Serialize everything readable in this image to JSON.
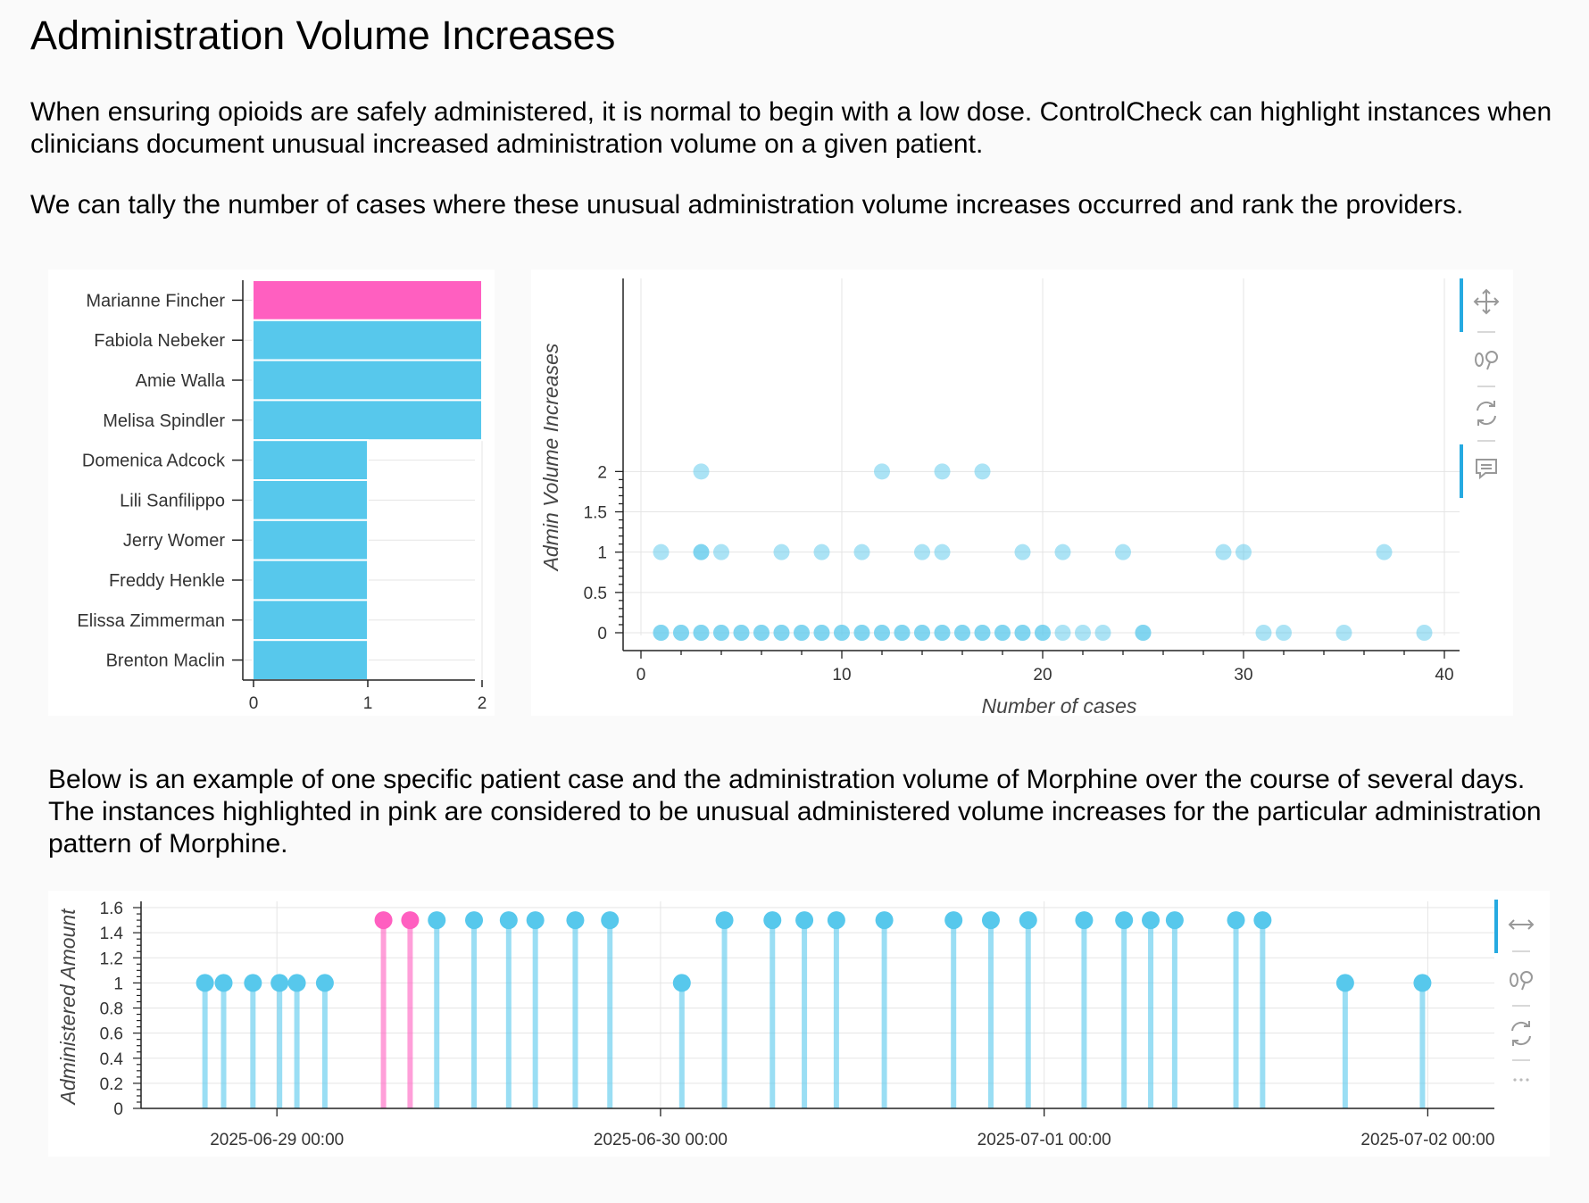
{
  "page": {
    "title": "Administration Volume Increases",
    "paragraph1": "When ensuring opioids are safely administered, it is normal to begin with a low dose. ControlCheck can highlight instances when clinicians document unusual increased administration volume on a given patient.",
    "paragraph2": "We can tally the number of cases where these unusual administration volume increases occurred and rank the providers.",
    "paragraph3": "Below is an example of one specific patient case and the administration volume of Morphine over the course of several days. The instances highlighted in pink are considered to be unusual administered volume increases for the particular administration pattern of Morphine."
  },
  "colors": {
    "blue": "#57c8ec",
    "pink": "#ff5fc0",
    "grid": "#e5e5e5",
    "axis": "#222222",
    "toolbar_active": "#26aae1",
    "toolbar_icon": "#999999"
  },
  "toolbar_icons": {
    "scatter": [
      "pan-icon",
      "wheel-zoom-icon",
      "reset-icon",
      "hover-icon"
    ],
    "stem": [
      "x-pan-icon",
      "wheel-zoom-icon",
      "reset-icon",
      "more-icon"
    ]
  },
  "chart_data": [
    {
      "type": "bar",
      "orientation": "horizontal",
      "categories": [
        "Marianne Fincher",
        "Fabiola Nebeker",
        "Amie Walla",
        "Melisa Spindler",
        "Domenica Adcock",
        "Lili Sanfilippo",
        "Jerry Womer",
        "Freddy Henkle",
        "Elissa Zimmerman",
        "Brenton Maclin"
      ],
      "values": [
        2,
        2,
        2,
        2,
        1,
        1,
        1,
        1,
        1,
        1
      ],
      "highlight": [
        true,
        false,
        false,
        false,
        false,
        false,
        false,
        false,
        false,
        false
      ],
      "xlim": [
        0,
        2
      ],
      "xticks": [
        0,
        1,
        2
      ],
      "xlabel": "",
      "ylabel": "",
      "grid": true
    },
    {
      "type": "scatter",
      "xlabel": "Number of cases",
      "ylabel": "Admin Volume Increases",
      "xlim": [
        -1,
        41
      ],
      "ylim": [
        -0.1,
        2.1
      ],
      "xticks": [
        0,
        10,
        20,
        30,
        40
      ],
      "yticks": [
        0,
        0.5,
        1,
        1.5,
        2
      ],
      "ytick_labels": [
        "0",
        "0.5",
        "1",
        "1.5",
        "2"
      ],
      "grid": true,
      "series": [
        {
          "points": [
            [
              3,
              2
            ],
            [
              12,
              2
            ],
            [
              15,
              2
            ],
            [
              17,
              2
            ],
            [
              1,
              1
            ],
            [
              3,
              1
            ],
            [
              3,
              1
            ],
            [
              4,
              1
            ],
            [
              7,
              1
            ],
            [
              9,
              1
            ],
            [
              11,
              1
            ],
            [
              14,
              1
            ],
            [
              15,
              1
            ],
            [
              19,
              1
            ],
            [
              21,
              1
            ],
            [
              24,
              1
            ],
            [
              29,
              1
            ],
            [
              30,
              1
            ],
            [
              37,
              1
            ],
            [
              1,
              0
            ],
            [
              1,
              0
            ],
            [
              2,
              0
            ],
            [
              2,
              0
            ],
            [
              3,
              0
            ],
            [
              3,
              0
            ],
            [
              4,
              0
            ],
            [
              4,
              0
            ],
            [
              5,
              0
            ],
            [
              5,
              0
            ],
            [
              6,
              0
            ],
            [
              6,
              0
            ],
            [
              7,
              0
            ],
            [
              7,
              0
            ],
            [
              8,
              0
            ],
            [
              8,
              0
            ],
            [
              9,
              0
            ],
            [
              9,
              0
            ],
            [
              10,
              0
            ],
            [
              10,
              0
            ],
            [
              11,
              0
            ],
            [
              11,
              0
            ],
            [
              12,
              0
            ],
            [
              12,
              0
            ],
            [
              13,
              0
            ],
            [
              13,
              0
            ],
            [
              14,
              0
            ],
            [
              14,
              0
            ],
            [
              15,
              0
            ],
            [
              15,
              0
            ],
            [
              16,
              0
            ],
            [
              16,
              0
            ],
            [
              17,
              0
            ],
            [
              17,
              0
            ],
            [
              18,
              0
            ],
            [
              18,
              0
            ],
            [
              19,
              0
            ],
            [
              19,
              0
            ],
            [
              20,
              0
            ],
            [
              20,
              0
            ],
            [
              21,
              0
            ],
            [
              22,
              0
            ],
            [
              23,
              0
            ],
            [
              25,
              0
            ],
            [
              25,
              0
            ],
            [
              31,
              0
            ],
            [
              32,
              0
            ],
            [
              35,
              0
            ],
            [
              39,
              0
            ]
          ]
        }
      ]
    },
    {
      "type": "stem",
      "xlabel": "",
      "ylabel": "Administered Amount",
      "xlim": [
        "2025-06-28 15:30",
        "2025-07-02 04:10"
      ],
      "ylim": [
        0,
        1.65
      ],
      "xticks": [
        "2025-06-29 00:00",
        "2025-06-30 00:00",
        "2025-07-01 00:00",
        "2025-07-02 00:00"
      ],
      "yticks": [
        0,
        0.2,
        0.4,
        0.6,
        0.8,
        1,
        1.2,
        1.4,
        1.6
      ],
      "ytick_labels": [
        "0",
        "0.2",
        "0.4",
        "0.6",
        "0.8",
        "1",
        "1.2",
        "1.4",
        "1.6"
      ],
      "grid": true,
      "series": [
        {
          "points": [
            {
              "t": "2025-06-28 19:30",
              "v": 1,
              "unusual": false
            },
            {
              "t": "2025-06-28 20:40",
              "v": 1,
              "unusual": false
            },
            {
              "t": "2025-06-28 22:30",
              "v": 1,
              "unusual": false
            },
            {
              "t": "2025-06-29 00:10",
              "v": 1,
              "unusual": false
            },
            {
              "t": "2025-06-29 01:15",
              "v": 1,
              "unusual": false
            },
            {
              "t": "2025-06-29 03:00",
              "v": 1,
              "unusual": false
            },
            {
              "t": "2025-06-29 06:40",
              "v": 1.5,
              "unusual": true
            },
            {
              "t": "2025-06-29 08:20",
              "v": 1.5,
              "unusual": true
            },
            {
              "t": "2025-06-29 10:00",
              "v": 1.5,
              "unusual": false
            },
            {
              "t": "2025-06-29 12:20",
              "v": 1.5,
              "unusual": false
            },
            {
              "t": "2025-06-29 14:30",
              "v": 1.5,
              "unusual": false
            },
            {
              "t": "2025-06-29 16:10",
              "v": 1.5,
              "unusual": false
            },
            {
              "t": "2025-06-29 18:40",
              "v": 1.5,
              "unusual": false
            },
            {
              "t": "2025-06-29 20:50",
              "v": 1.5,
              "unusual": false
            },
            {
              "t": "2025-06-30 01:20",
              "v": 1,
              "unusual": false
            },
            {
              "t": "2025-06-30 04:00",
              "v": 1.5,
              "unusual": false
            },
            {
              "t": "2025-06-30 07:00",
              "v": 1.5,
              "unusual": false
            },
            {
              "t": "2025-06-30 09:00",
              "v": 1.5,
              "unusual": false
            },
            {
              "t": "2025-06-30 11:00",
              "v": 1.5,
              "unusual": false
            },
            {
              "t": "2025-06-30 14:00",
              "v": 1.5,
              "unusual": false
            },
            {
              "t": "2025-06-30 18:20",
              "v": 1.5,
              "unusual": false
            },
            {
              "t": "2025-06-30 20:40",
              "v": 1.5,
              "unusual": false
            },
            {
              "t": "2025-06-30 23:00",
              "v": 1.5,
              "unusual": false
            },
            {
              "t": "2025-07-01 02:30",
              "v": 1.5,
              "unusual": false
            },
            {
              "t": "2025-07-01 05:00",
              "v": 1.5,
              "unusual": false
            },
            {
              "t": "2025-07-01 06:40",
              "v": 1.5,
              "unusual": false
            },
            {
              "t": "2025-07-01 08:10",
              "v": 1.5,
              "unusual": false
            },
            {
              "t": "2025-07-01 12:00",
              "v": 1.5,
              "unusual": false
            },
            {
              "t": "2025-07-01 13:40",
              "v": 1.5,
              "unusual": false
            },
            {
              "t": "2025-07-01 18:50",
              "v": 1,
              "unusual": false
            },
            {
              "t": "2025-07-01 23:40",
              "v": 1,
              "unusual": false
            }
          ]
        }
      ]
    }
  ]
}
